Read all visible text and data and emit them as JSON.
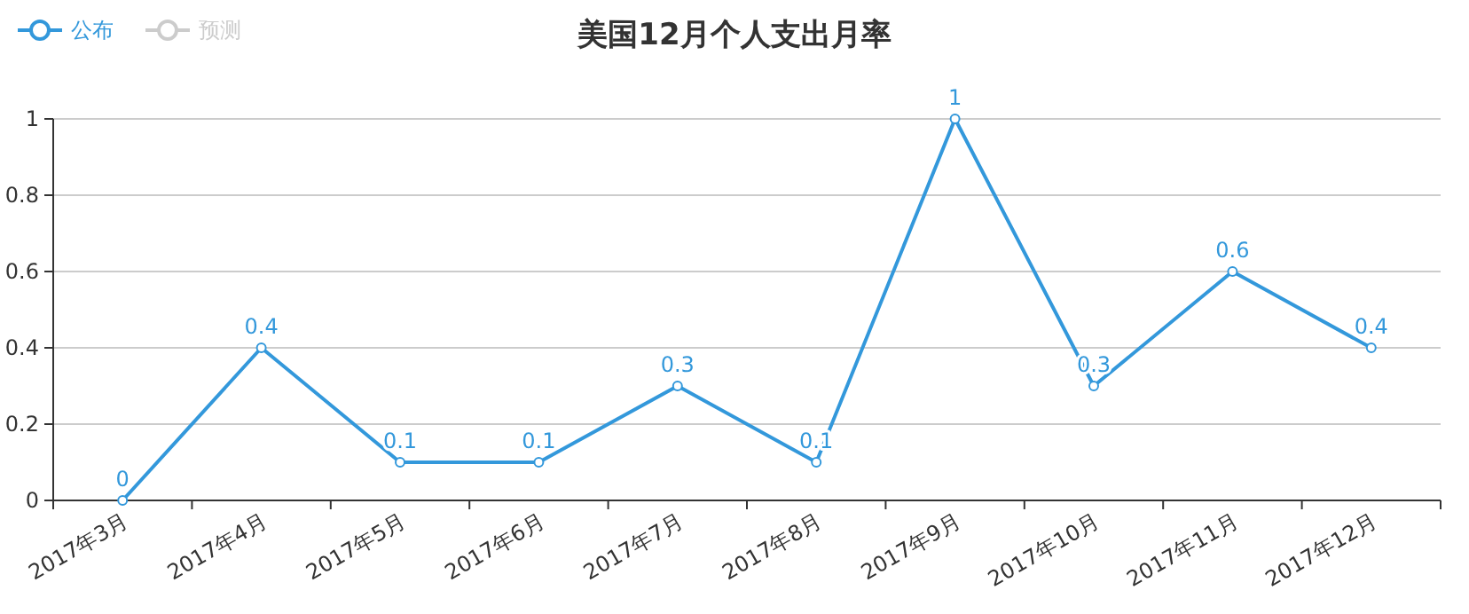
{
  "chart_data": {
    "type": "line",
    "title": "美国12月个人支出月率",
    "categories": [
      "2017年3月",
      "2017年4月",
      "2017年5月",
      "2017年6月",
      "2017年7月",
      "2017年8月",
      "2017年9月",
      "2017年10月",
      "2017年11月",
      "2017年12月"
    ],
    "series": [
      {
        "name": "公布",
        "color": "#3398db",
        "values": [
          0,
          0.4,
          0.1,
          0.1,
          0.3,
          0.1,
          1,
          0.3,
          0.6,
          0.4
        ]
      },
      {
        "name": "预测",
        "color": "#cccccc",
        "values": [
          null,
          null,
          null,
          null,
          null,
          null,
          null,
          null,
          null,
          null
        ]
      }
    ],
    "ylim": [
      0,
      1
    ],
    "yticks": [
      0,
      0.2,
      0.4,
      0.6,
      0.8,
      1
    ],
    "grid": "y",
    "data_labels": true,
    "marker": "circle",
    "legend": "top left"
  }
}
